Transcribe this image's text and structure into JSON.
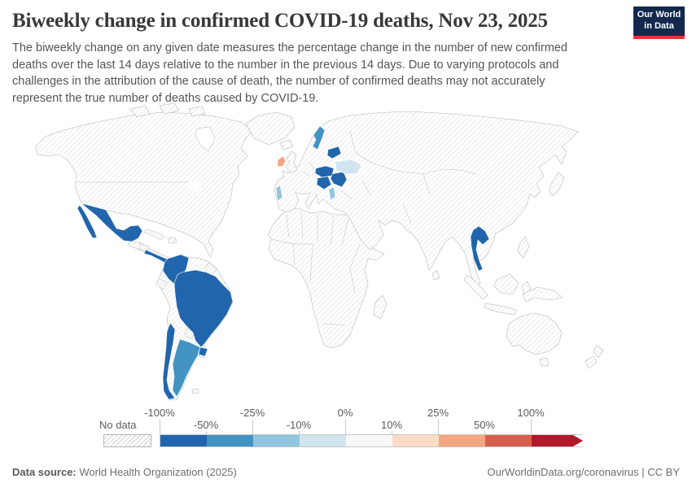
{
  "header": {
    "title": "Biweekly change in confirmed COVID-19 deaths, Nov 23, 2025",
    "logo": {
      "line1": "Our World",
      "line2": "in Data"
    },
    "subtitle": "The biweekly change on any given date measures the percentage change in the number of new confirmed deaths over the last 14 days relative to the number in the previous 14 days. Due to varying protocols and challenges in the attribution of the cause of death, the number of confirmed deaths may not accurately represent the true number of deaths caused by COVID-19."
  },
  "legend": {
    "no_data_label": "No data",
    "ticks": [
      {
        "label": "-100%",
        "row": "top"
      },
      {
        "label": "-50%",
        "row": "bottom"
      },
      {
        "label": "-25%",
        "row": "top"
      },
      {
        "label": "-10%",
        "row": "bottom"
      },
      {
        "label": "0%",
        "row": "top"
      },
      {
        "label": "10%",
        "row": "bottom"
      },
      {
        "label": "25%",
        "row": "top"
      },
      {
        "label": "50%",
        "row": "bottom"
      },
      {
        "label": "100%",
        "row": "top"
      }
    ],
    "bin_colors": [
      "#2166ac",
      "#4393c3",
      "#92c5de",
      "#d1e5f0",
      "#f7f7f7",
      "#fddbc7",
      "#f4a582",
      "#d6604d",
      "#b2182b"
    ]
  },
  "map": {
    "countries": {
      "mexico": {
        "name": "Mexico",
        "bin": "-100% to -50%",
        "color": "#2166ac"
      },
      "central_america": {
        "name": "Nicaragua, Costa Rica, Panama",
        "bin": "-100% to -50%",
        "color": "#2166ac"
      },
      "colombia": {
        "name": "Colombia",
        "bin": "-100% to -50%",
        "color": "#2166ac"
      },
      "brazil": {
        "name": "Brazil",
        "bin": "-100% to -50%",
        "color": "#2166ac"
      },
      "chile": {
        "name": "Chile",
        "bin": "-100% to -50%",
        "color": "#2166ac"
      },
      "uruguay": {
        "name": "Uruguay",
        "bin": "-100% to -50%",
        "color": "#2166ac"
      },
      "argentina": {
        "name": "Argentina",
        "bin": "-50% to -25%",
        "color": "#4393c3"
      },
      "ecuador": {
        "name": "Ecuador",
        "bin": "0%",
        "color": "#f7f7f7"
      },
      "paraguay": {
        "name": "Paraguay",
        "bin": "0%",
        "color": "#f7f7f7"
      },
      "guyanas": {
        "name": "Guyana, Suriname",
        "bin": "0%",
        "color": "#f7f7f7"
      },
      "honduras": {
        "name": "Honduras",
        "bin": "0%",
        "color": "#f7f7f7"
      },
      "cuba": {
        "name": "Cuba",
        "bin": "0%",
        "color": "#f7f7f7"
      },
      "ireland": {
        "name": "Ireland",
        "bin": "25% to 50%",
        "color": "#f4a582"
      },
      "portugal": {
        "name": "Portugal",
        "bin": "-25% to -10%",
        "color": "#92c5de"
      },
      "sweden": {
        "name": "Sweden",
        "bin": "-50% to -25%",
        "color": "#4393c3"
      },
      "baltics": {
        "name": "Latvia, Lithuania",
        "bin": "-100% to -50%",
        "color": "#2166ac"
      },
      "central_europe": {
        "name": "Czechia, Slovakia, Hungary",
        "bin": "-100% to -50%",
        "color": "#2166ac"
      },
      "romania_bulgaria": {
        "name": "Romania, Bulgaria",
        "bin": "-100% to -50%",
        "color": "#2166ac"
      },
      "balkans": {
        "name": "Croatia, Bosnia, Serbia",
        "bin": "-100% to -50%",
        "color": "#2166ac"
      },
      "ukraine": {
        "name": "Ukraine",
        "bin": "-10% to 0%",
        "color": "#d1e5f0"
      },
      "greece": {
        "name": "Greece",
        "bin": "-25% to -10%",
        "color": "#92c5de"
      },
      "thailand": {
        "name": "Thailand",
        "bin": "-100% to -50%",
        "color": "#2166ac"
      }
    }
  },
  "footer": {
    "source_label": "Data source:",
    "source_value": " World Health Organization (2025)",
    "link": "OurWorldinData.org/coronavirus | CC BY"
  }
}
